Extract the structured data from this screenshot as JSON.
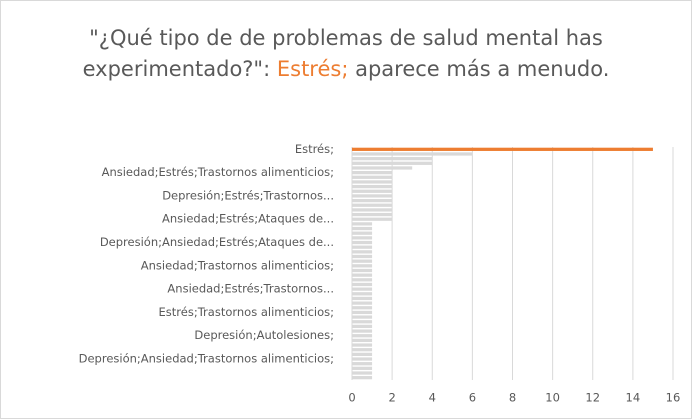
{
  "chart_data": {
    "type": "hbar",
    "title_parts": [
      "\"¿Qué tipo de de problemas de salud mental has experimentado?\": ",
      "Estrés;",
      " aparece más a menudo."
    ],
    "categories": [
      "Estrés;",
      null,
      null,
      null,
      null,
      "Ansiedad;Estrés;Trastornos alimenticios;",
      null,
      null,
      null,
      null,
      "Depresión;Estrés;Trastornos...",
      null,
      null,
      null,
      null,
      "Ansiedad;Estrés;Ataques de...",
      null,
      null,
      null,
      null,
      "Depresión;Ansiedad;Estrés;Ataques de...",
      null,
      null,
      null,
      null,
      "Ansiedad;Trastornos alimenticios;",
      null,
      null,
      null,
      null,
      "Ansiedad;Estrés;Trastornos...",
      null,
      null,
      null,
      null,
      "Estrés;Trastornos alimenticios;",
      null,
      null,
      null,
      null,
      "Depresión;Autolesiones;",
      null,
      null,
      null,
      null,
      "Depresión;Ansiedad;Trastornos alimenticios;",
      null,
      null,
      null,
      null
    ],
    "values": [
      15,
      6,
      4,
      4,
      3,
      2,
      2,
      2,
      2,
      2,
      2,
      2,
      2,
      2,
      2,
      2,
      1,
      1,
      1,
      1,
      1,
      1,
      1,
      1,
      1,
      1,
      1,
      1,
      1,
      1,
      1,
      1,
      1,
      1,
      1,
      1,
      1,
      1,
      1,
      1,
      1,
      1,
      1,
      1,
      1,
      1,
      1,
      1,
      1,
      1
    ],
    "color": "#d9d9d9",
    "highlight_color": "#ed7d31",
    "xlim": [
      0,
      16
    ],
    "xticks": [
      0,
      2,
      4,
      6,
      8,
      10,
      12,
      14,
      16
    ],
    "grid": true
  }
}
